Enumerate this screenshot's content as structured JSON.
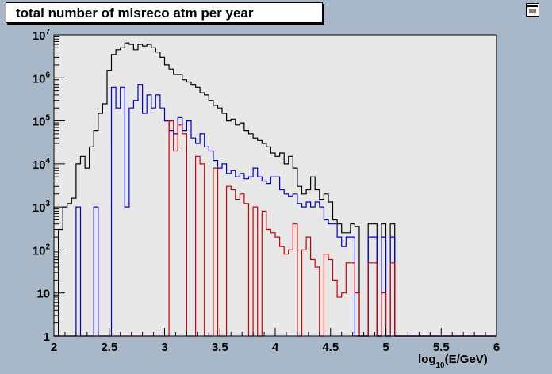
{
  "canvas": {
    "background": "#a8b8c8",
    "frame_background": "#e8e8e8",
    "editor_icon": "canvas-editor-icon"
  },
  "chart_data": {
    "type": "histogram",
    "title": "total number of misreco atm per year",
    "xlabel": "log10(E/GeV)",
    "xlabel_main": "log",
    "xlabel_sub": "10",
    "xlabel_rest": "(E/GeV)",
    "ylabel": "",
    "log_y": true,
    "xlim": [
      2,
      6
    ],
    "ylim": [
      1,
      10000000
    ],
    "bin_width": 0.04,
    "grid": false,
    "x_ticks": [
      {
        "value": 2,
        "label": "2"
      },
      {
        "value": 2.5,
        "label": "2.5"
      },
      {
        "value": 3,
        "label": "3"
      },
      {
        "value": 3.5,
        "label": "3.5"
      },
      {
        "value": 4,
        "label": "4"
      },
      {
        "value": 4.5,
        "label": "4.5"
      },
      {
        "value": 5,
        "label": "5"
      },
      {
        "value": 5.5,
        "label": "5.5"
      },
      {
        "value": 6,
        "label": "6"
      }
    ],
    "y_ticks": [
      {
        "value": 1,
        "base": "1",
        "exp": ""
      },
      {
        "value": 10,
        "base": "10",
        "exp": ""
      },
      {
        "value": 100,
        "base": "10",
        "exp": "2"
      },
      {
        "value": 1000,
        "base": "10",
        "exp": "3"
      },
      {
        "value": 10000,
        "base": "10",
        "exp": "4"
      },
      {
        "value": 100000,
        "base": "10",
        "exp": "5"
      },
      {
        "value": 1000000,
        "base": "10",
        "exp": "6"
      },
      {
        "value": 10000000,
        "base": "10",
        "exp": "7"
      }
    ],
    "series": [
      {
        "color": "#000000",
        "bins": [
          [
            2.04,
            300
          ],
          [
            2.08,
            1000
          ],
          [
            2.12,
            1200
          ],
          [
            2.16,
            1600
          ],
          [
            2.2,
            10000
          ],
          [
            2.24,
            15000
          ],
          [
            2.28,
            8000
          ],
          [
            2.32,
            25000
          ],
          [
            2.36,
            60000
          ],
          [
            2.4,
            150000
          ],
          [
            2.44,
            250000
          ],
          [
            2.48,
            1500000
          ],
          [
            2.52,
            3500000
          ],
          [
            2.56,
            4500000
          ],
          [
            2.6,
            5000000
          ],
          [
            2.64,
            6500000
          ],
          [
            2.68,
            6000000
          ],
          [
            2.72,
            4500000
          ],
          [
            2.76,
            6000000
          ],
          [
            2.8,
            5500000
          ],
          [
            2.84,
            6000000
          ],
          [
            2.88,
            5000000
          ],
          [
            2.92,
            4000000
          ],
          [
            2.96,
            3000000
          ],
          [
            3.0,
            2000000
          ],
          [
            3.04,
            1600000
          ],
          [
            3.08,
            1200000
          ],
          [
            3.12,
            1200000
          ],
          [
            3.16,
            900000
          ],
          [
            3.2,
            800000
          ],
          [
            3.24,
            700000
          ],
          [
            3.28,
            600000
          ],
          [
            3.32,
            450000
          ],
          [
            3.36,
            400000
          ],
          [
            3.4,
            300000
          ],
          [
            3.44,
            230000
          ],
          [
            3.48,
            200000
          ],
          [
            3.52,
            150000
          ],
          [
            3.56,
            100000
          ],
          [
            3.6,
            110000
          ],
          [
            3.64,
            80000
          ],
          [
            3.68,
            90000
          ],
          [
            3.72,
            60000
          ],
          [
            3.76,
            50000
          ],
          [
            3.8,
            40000
          ],
          [
            3.84,
            35000
          ],
          [
            3.88,
            30000
          ],
          [
            3.92,
            25000
          ],
          [
            3.96,
            18000
          ],
          [
            4.0,
            15000
          ],
          [
            4.04,
            18000
          ],
          [
            4.08,
            10000
          ],
          [
            4.12,
            15000
          ],
          [
            4.16,
            8000
          ],
          [
            4.2,
            3000
          ],
          [
            4.24,
            2000
          ],
          [
            4.28,
            2500
          ],
          [
            4.32,
            5000
          ],
          [
            4.36,
            2500
          ],
          [
            4.4,
            1500
          ],
          [
            4.44,
            2000
          ],
          [
            4.48,
            1300
          ],
          [
            4.52,
            500
          ],
          [
            4.56,
            400
          ],
          [
            4.6,
            250
          ],
          [
            4.64,
            250
          ],
          [
            4.68,
            400
          ],
          [
            4.72,
            350
          ],
          [
            4.84,
            400
          ],
          [
            4.88,
            400
          ],
          [
            4.96,
            400
          ],
          [
            5.04,
            400
          ]
        ]
      },
      {
        "color": "#0000cc",
        "bins": [
          [
            2.2,
            1000
          ],
          [
            2.36,
            1000
          ],
          [
            2.52,
            600000
          ],
          [
            2.56,
            200000
          ],
          [
            2.6,
            600000
          ],
          [
            2.64,
            1000
          ],
          [
            2.68,
            200000
          ],
          [
            2.72,
            300000
          ],
          [
            2.76,
            700000
          ],
          [
            2.8,
            150000
          ],
          [
            2.84,
            400000
          ],
          [
            2.88,
            200000
          ],
          [
            2.92,
            400000
          ],
          [
            2.96,
            200000
          ],
          [
            3.0,
            100000
          ],
          [
            3.04,
            60000
          ],
          [
            3.08,
            50000
          ],
          [
            3.12,
            120000
          ],
          [
            3.16,
            60000
          ],
          [
            3.2,
            100000
          ],
          [
            3.24,
            40000
          ],
          [
            3.28,
            30000
          ],
          [
            3.32,
            50000
          ],
          [
            3.36,
            25000
          ],
          [
            3.4,
            20000
          ],
          [
            3.44,
            12000
          ],
          [
            3.48,
            8000
          ],
          [
            3.52,
            10000
          ],
          [
            3.56,
            6000
          ],
          [
            3.6,
            7000
          ],
          [
            3.64,
            5000
          ],
          [
            3.68,
            6000
          ],
          [
            3.72,
            4500
          ],
          [
            3.76,
            5000
          ],
          [
            3.8,
            8000
          ],
          [
            3.84,
            5000
          ],
          [
            3.88,
            4000
          ],
          [
            3.92,
            3500
          ],
          [
            3.96,
            5000
          ],
          [
            4.0,
            5000
          ],
          [
            4.04,
            2500
          ],
          [
            4.08,
            2000
          ],
          [
            4.12,
            1800
          ],
          [
            4.16,
            2000
          ],
          [
            4.2,
            1200
          ],
          [
            4.24,
            1000
          ],
          [
            4.28,
            1300
          ],
          [
            4.32,
            1000
          ],
          [
            4.36,
            1300
          ],
          [
            4.4,
            1000
          ],
          [
            4.44,
            500
          ],
          [
            4.48,
            400
          ],
          [
            4.52,
            400
          ],
          [
            4.56,
            200
          ],
          [
            4.6,
            120
          ],
          [
            4.64,
            200
          ],
          [
            4.68,
            200
          ],
          [
            4.84,
            200
          ],
          [
            4.88,
            200
          ],
          [
            4.96,
            200
          ],
          [
            5.04,
            200
          ]
        ]
      },
      {
        "color": "#cc0000",
        "bins": [
          [
            3.04,
            100000
          ],
          [
            3.08,
            20000
          ],
          [
            3.12,
            80000
          ],
          [
            3.16,
            50000
          ],
          [
            3.28,
            15000
          ],
          [
            3.32,
            10000
          ],
          [
            3.44,
            8000
          ],
          [
            3.56,
            3000
          ],
          [
            3.6,
            2500
          ],
          [
            3.64,
            1500
          ],
          [
            3.68,
            2000
          ],
          [
            3.72,
            1200
          ],
          [
            3.8,
            1000
          ],
          [
            3.88,
            800
          ],
          [
            3.92,
            300
          ],
          [
            3.96,
            250
          ],
          [
            4.0,
            200
          ],
          [
            4.04,
            120
          ],
          [
            4.08,
            80
          ],
          [
            4.12,
            100
          ],
          [
            4.16,
            400
          ],
          [
            4.24,
            100
          ],
          [
            4.28,
            200
          ],
          [
            4.32,
            60
          ],
          [
            4.36,
            40
          ],
          [
            4.44,
            80
          ],
          [
            4.48,
            60
          ],
          [
            4.52,
            20
          ],
          [
            4.56,
            8
          ],
          [
            4.6,
            10
          ],
          [
            4.64,
            50
          ],
          [
            4.68,
            50
          ],
          [
            4.72,
            10
          ],
          [
            4.84,
            50
          ],
          [
            4.88,
            50
          ],
          [
            4.96,
            10
          ],
          [
            5.04,
            50
          ]
        ]
      }
    ]
  }
}
